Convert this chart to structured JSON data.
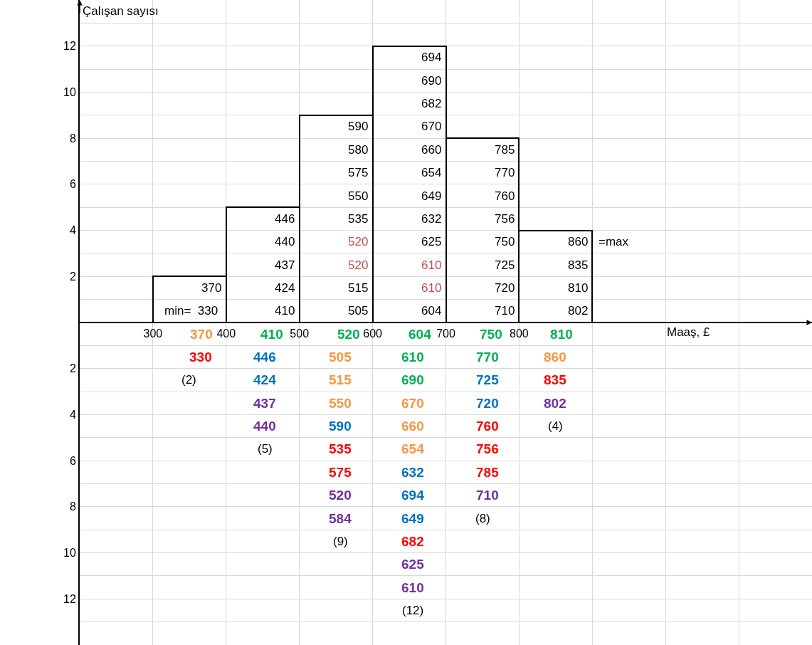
{
  "chart_data": {
    "type": "histogram",
    "xlabel": "Maaş, £",
    "ylabel": "Çalışan sayısı",
    "bins": [
      300,
      400,
      500,
      600,
      700,
      800,
      900
    ],
    "values": [
      2,
      5,
      9,
      12,
      8,
      4
    ],
    "xlim": [
      200,
      1200
    ],
    "xticks": [
      300,
      400,
      500,
      600,
      700,
      800
    ],
    "ylim": [
      -14,
      14
    ],
    "yticks": [
      {
        "value": -12,
        "label": "12"
      },
      {
        "value": -10,
        "label": "10"
      },
      {
        "value": -8,
        "label": "8"
      },
      {
        "value": -6,
        "label": "6"
      },
      {
        "value": -4,
        "label": "4"
      },
      {
        "value": -2,
        "label": "2"
      },
      2,
      4,
      6,
      8,
      10,
      12
    ],
    "grid": true,
    "annotations": [
      "min=  330",
      "370",
      "410",
      "424",
      "437",
      "440",
      "446",
      "505",
      "515",
      "520",
      "520",
      "535",
      "550",
      "575",
      "580",
      "590",
      "604",
      "610",
      "610",
      "625",
      "632",
      "649",
      "654",
      "660",
      "670",
      "682",
      "690",
      "694",
      "710",
      "720",
      "725",
      "750",
      "756",
      "760",
      "770",
      "785",
      "802",
      "810",
      "835",
      "860",
      "=max",
      "370",
      "330",
      "(2)",
      "410",
      "446",
      "424",
      "437",
      "440",
      "(5)",
      "520",
      "505",
      "515",
      "550",
      "590",
      "535",
      "575",
      "520",
      "584",
      "(9)",
      "604",
      "610",
      "690",
      "670",
      "660",
      "654",
      "632",
      "694",
      "649",
      "682",
      "625",
      "610",
      "(12)",
      "750",
      "770",
      "725",
      "720",
      "760",
      "756",
      "785",
      "710",
      "(8)",
      "810",
      "860",
      "835",
      "802",
      "(4)"
    ]
  }
}
